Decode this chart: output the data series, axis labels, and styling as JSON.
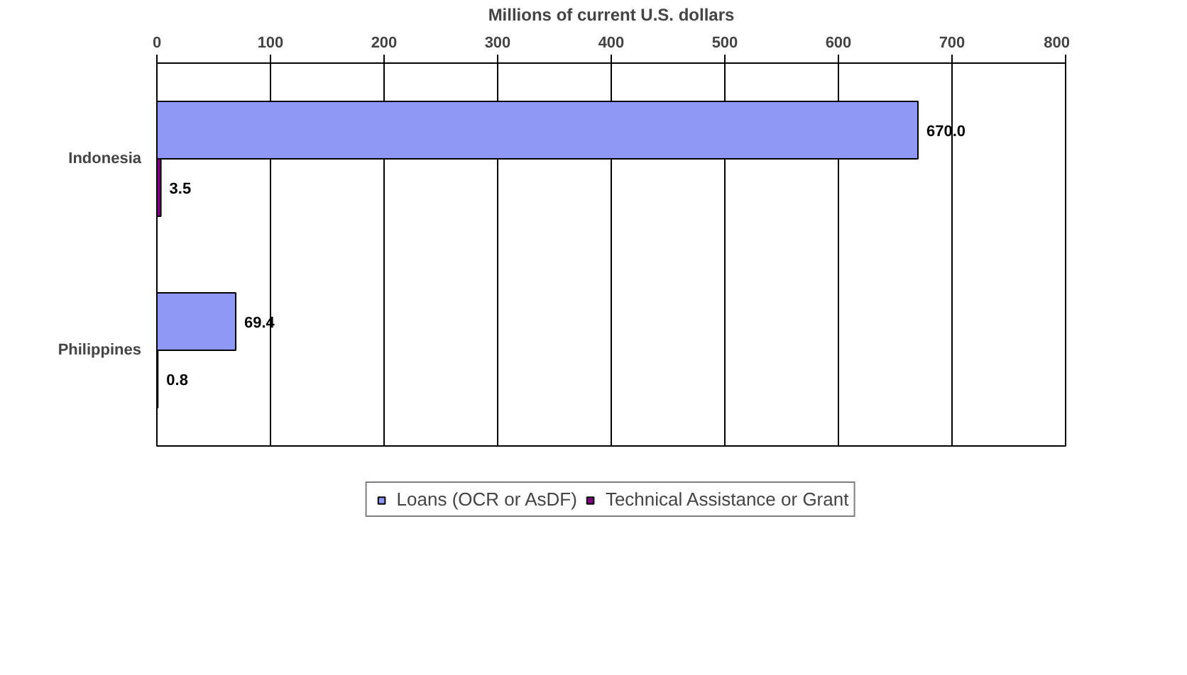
{
  "chart_data": {
    "type": "bar",
    "orientation": "horizontal",
    "xlabel": "Millions of current U.S. dollars",
    "categories": [
      "Indonesia",
      "Philippines"
    ],
    "series": [
      {
        "name": "Loans (OCR or AsDF)",
        "color": "#8f99f5",
        "values": [
          670.0,
          69.4
        ],
        "value_labels": [
          "670.0",
          "69.4"
        ]
      },
      {
        "name": "Technical Assistance or Grant",
        "color": "#800080",
        "values": [
          3.5,
          0.8
        ],
        "value_labels": [
          "3.5",
          "0.8"
        ]
      }
    ],
    "xlim": [
      0,
      800
    ],
    "xticks": [
      0,
      100,
      200,
      300,
      400,
      500,
      600,
      700,
      800
    ],
    "grid": "x",
    "legend": "bottom"
  }
}
